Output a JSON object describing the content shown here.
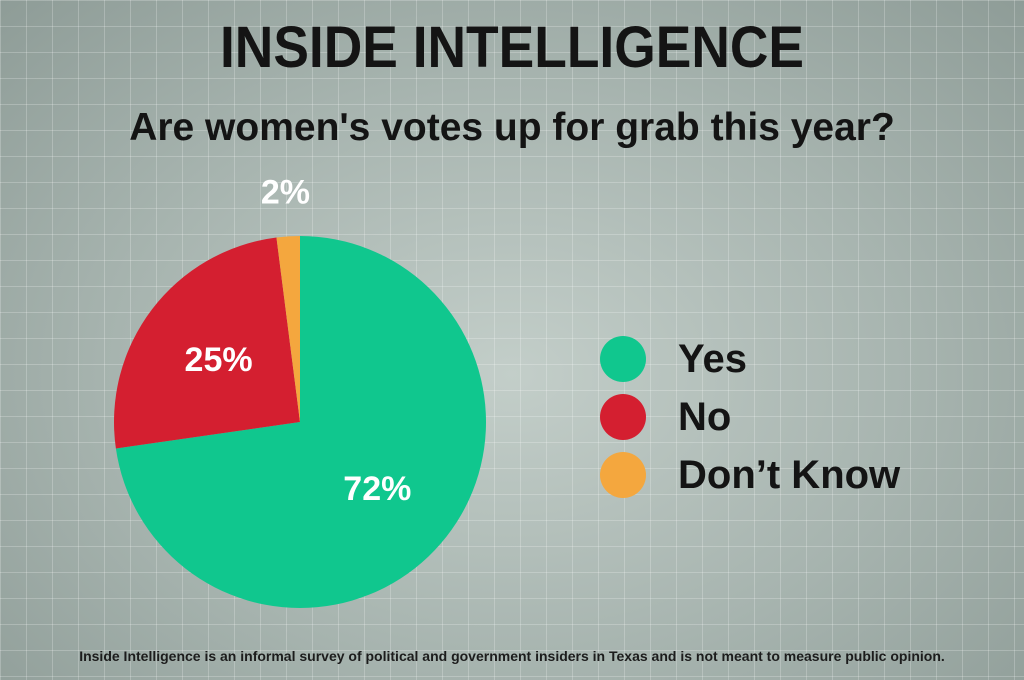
{
  "header": {
    "title": "INSIDE INTELLIGENCE",
    "subtitle": "Are women's votes up for grab this year?"
  },
  "footer": {
    "note": "Inside Intelligence is an informal survey of political and government insiders in Texas and is not meant to measure public opinion."
  },
  "colors": {
    "yes": "#10c78e",
    "no": "#d41f30",
    "dont_know": "#f4a73e",
    "label_text": "#ffffff"
  },
  "chart_data": {
    "type": "pie",
    "title": "Are women's votes up for grab this year?",
    "categories": [
      "Yes",
      "No",
      "Don’t Know"
    ],
    "values": [
      72,
      25,
      2
    ],
    "labels": [
      "72%",
      "25%",
      "2%"
    ],
    "colors": [
      "#10c78e",
      "#d41f30",
      "#f4a73e"
    ],
    "legend": "right"
  }
}
